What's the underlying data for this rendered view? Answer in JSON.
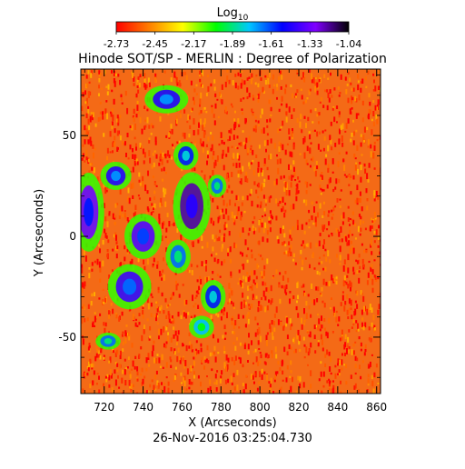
{
  "chart_data": {
    "type": "heatmap",
    "title": "Hinode SOT/SP - MERLIN : Degree of Polarization",
    "subtitle": "26-Nov-2016 03:25:04.730",
    "xlabel": "X (Arcseconds)",
    "ylabel": "Y (Arcseconds)",
    "xlim": [
      708,
      862
    ],
    "ylim": [
      -78,
      83
    ],
    "x_ticks": [
      720,
      740,
      760,
      780,
      800,
      820,
      840,
      860
    ],
    "y_ticks": [
      -50,
      0,
      50
    ],
    "colorbar": {
      "label_base": "Log",
      "label_sub": "10",
      "ticks": [
        "-2.73",
        "-2.45",
        "-2.17",
        "-1.89",
        "-1.61",
        "-1.33",
        "-1.04"
      ],
      "range": [
        -2.73,
        -1.04
      ],
      "colormap": [
        "#ff0000",
        "#ff7f00",
        "#ffff00",
        "#00ff00",
        "#00c8ff",
        "#0000ff",
        "#8000ff",
        "#000000"
      ]
    },
    "background_level": -2.6,
    "regions": [
      {
        "x": 712,
        "y": 12,
        "rx": 5,
        "ry": 14,
        "level": -1.55
      },
      {
        "x": 726,
        "y": 30,
        "rx": 5,
        "ry": 5,
        "level": -1.7
      },
      {
        "x": 740,
        "y": 0,
        "rx": 6,
        "ry": 8,
        "level": -1.6
      },
      {
        "x": 733,
        "y": -25,
        "rx": 7,
        "ry": 8,
        "level": -1.65
      },
      {
        "x": 752,
        "y": 68,
        "rx": 7,
        "ry": 5,
        "level": -1.7
      },
      {
        "x": 765,
        "y": 15,
        "rx": 6,
        "ry": 12,
        "level": -1.45
      },
      {
        "x": 762,
        "y": 40,
        "rx": 4,
        "ry": 5,
        "level": -1.8
      },
      {
        "x": 758,
        "y": -10,
        "rx": 4,
        "ry": 6,
        "level": -1.9
      },
      {
        "x": 776,
        "y": -30,
        "rx": 4,
        "ry": 6,
        "level": -1.8
      },
      {
        "x": 770,
        "y": -45,
        "rx": 4,
        "ry": 4,
        "level": -2.0
      },
      {
        "x": 722,
        "y": -52,
        "rx": 4,
        "ry": 3,
        "level": -1.9
      },
      {
        "x": 778,
        "y": 25,
        "rx": 3,
        "ry": 4,
        "level": -1.9
      }
    ]
  }
}
